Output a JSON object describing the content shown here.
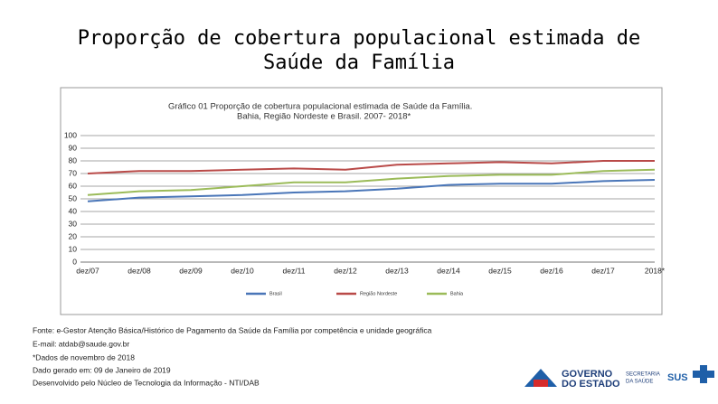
{
  "slide": {
    "title_lines": [
      "Proporção de cobertura populacional estimada de",
      "Saúde da Família"
    ]
  },
  "chart_data": {
    "type": "line",
    "title": "Gráfico 01   Proporção de cobertura populacional estimada de Saúde da Família.",
    "subtitle": "Bahia, Região Nordeste e Brasil. 2007- 2018*",
    "categories": [
      "dez/07",
      "dez/08",
      "dez/09",
      "dez/10",
      "dez/11",
      "dez/12",
      "dez/13",
      "dez/14",
      "dez/15",
      "dez/16",
      "dez/17",
      "2018*"
    ],
    "series": [
      {
        "name": "Brasil",
        "color": "#4a76b8",
        "values": [
          48,
          51,
          52,
          53,
          55,
          56,
          58,
          61,
          62,
          62,
          64,
          65
        ]
      },
      {
        "name": "Região Nordeste",
        "color": "#b94a48",
        "values": [
          70,
          72,
          72,
          73,
          74,
          73,
          77,
          78,
          79,
          78,
          80,
          80
        ]
      },
      {
        "name": "Bahia",
        "color": "#9bbb59",
        "values": [
          53,
          56,
          57,
          60,
          63,
          63,
          66,
          68,
          69,
          69,
          72,
          73
        ]
      }
    ],
    "ylim": [
      0,
      100
    ],
    "yticks": [
      0,
      10,
      20,
      30,
      40,
      50,
      60,
      70,
      80,
      90,
      100
    ],
    "grid": true,
    "legend": "bottom"
  },
  "footer": {
    "lines": [
      "Fonte: e-Gestor Atenção Básica/Histórico de Pagamento da Saúde da Família por competência e unidade geográfica",
      "E-mail: atdab@saude.gov.br",
      "*Dados de novembro de 2018",
      "Dado gerado em: 09 de Janeiro de 2019",
      "Desenvolvido pelo Núcleo de Tecnologia da Informação - NTI/DAB"
    ]
  },
  "logos": {
    "governo": [
      "GOVERNO",
      "DO ESTADO"
    ],
    "secretaria": [
      "SECRETARIA",
      "DA SAÚDE"
    ],
    "sus": "SUS"
  }
}
